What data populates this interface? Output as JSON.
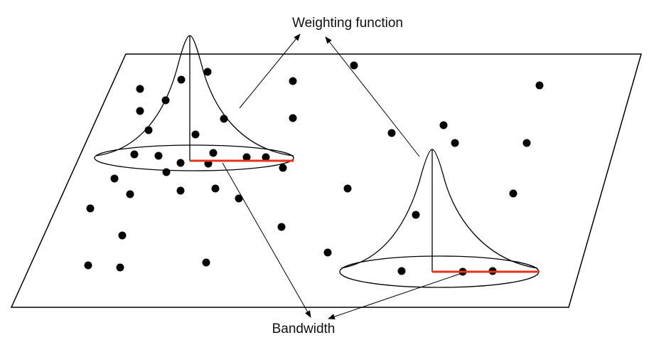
{
  "labels": {
    "weighting_function": "Weighting function",
    "bandwidth": "Bandwidth"
  },
  "colors": {
    "line": "#000000",
    "bandwidth_line": "#e8321e",
    "point": "#000000",
    "background": "#ffffff"
  }
}
